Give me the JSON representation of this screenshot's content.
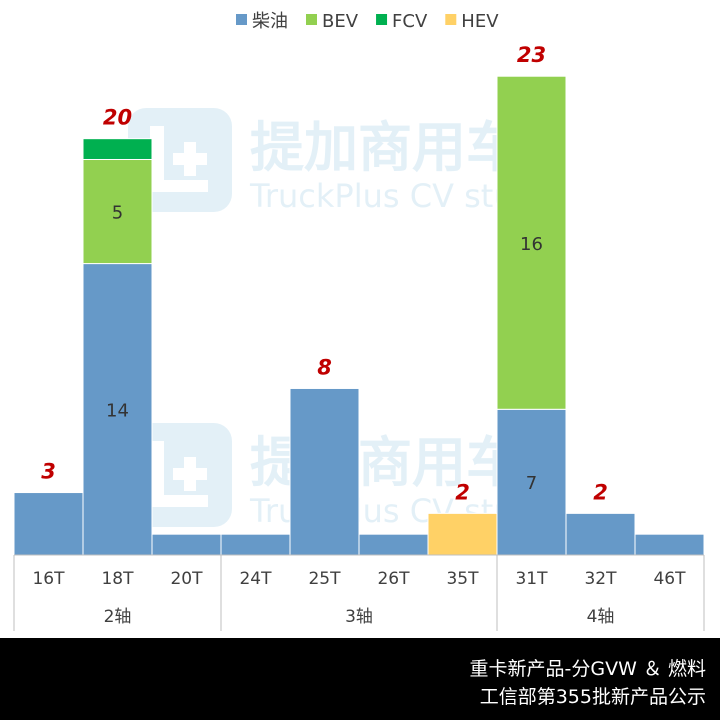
{
  "chart_data": {
    "type": "bar",
    "stacked": true,
    "title": "",
    "xlabel": "",
    "ylabel": "",
    "ylim": [
      0,
      24.5
    ],
    "grid": false,
    "legend_position": "top",
    "categories": [
      "16T",
      "18T",
      "20T",
      "24T",
      "25T",
      "26T",
      "35T",
      "31T",
      "32T",
      "46T"
    ],
    "groups": [
      {
        "label": "2轴",
        "categories": [
          "16T",
          "18T",
          "20T"
        ]
      },
      {
        "label": "3轴",
        "categories": [
          "24T",
          "25T",
          "26T",
          "35T"
        ]
      },
      {
        "label": "4轴",
        "categories": [
          "31T",
          "32T",
          "46T"
        ]
      }
    ],
    "series": [
      {
        "name": "柴油",
        "color": "#6699c8",
        "values": [
          3,
          14,
          1,
          1,
          8,
          1,
          0,
          7,
          2,
          1
        ]
      },
      {
        "name": "BEV",
        "color": "#92d050",
        "values": [
          0,
          5,
          0,
          0,
          0,
          0,
          0,
          16,
          0,
          0
        ]
      },
      {
        "name": "FCV",
        "color": "#00b050",
        "values": [
          0,
          1,
          0,
          0,
          0,
          0,
          0,
          0,
          0,
          0
        ]
      },
      {
        "name": "HEV",
        "color": "#ffd166",
        "values": [
          0,
          0,
          0,
          0,
          0,
          0,
          2,
          0,
          0,
          0
        ]
      }
    ],
    "segment_labels": [
      {
        "category": "18T",
        "series": "柴油",
        "text": "14"
      },
      {
        "category": "18T",
        "series": "BEV",
        "text": "5"
      },
      {
        "category": "31T",
        "series": "柴油",
        "text": "7"
      },
      {
        "category": "31T",
        "series": "BEV",
        "text": "16"
      }
    ],
    "total_labels": [
      {
        "category": "16T",
        "text": "3"
      },
      {
        "category": "18T",
        "text": "20"
      },
      {
        "category": "25T",
        "text": "8"
      },
      {
        "category": "35T",
        "text": "2"
      },
      {
        "category": "31T",
        "text": "23"
      },
      {
        "category": "32T",
        "text": "2"
      }
    ],
    "total_label_color": "#c00000"
  },
  "watermark": {
    "logo_text": "提加商用车",
    "sub_text": "TruckPlus CV studio"
  },
  "footer": {
    "line1": "重卡新产品-分GVW ＆ 燃料",
    "line2": "工信部第355批新产品公示"
  }
}
